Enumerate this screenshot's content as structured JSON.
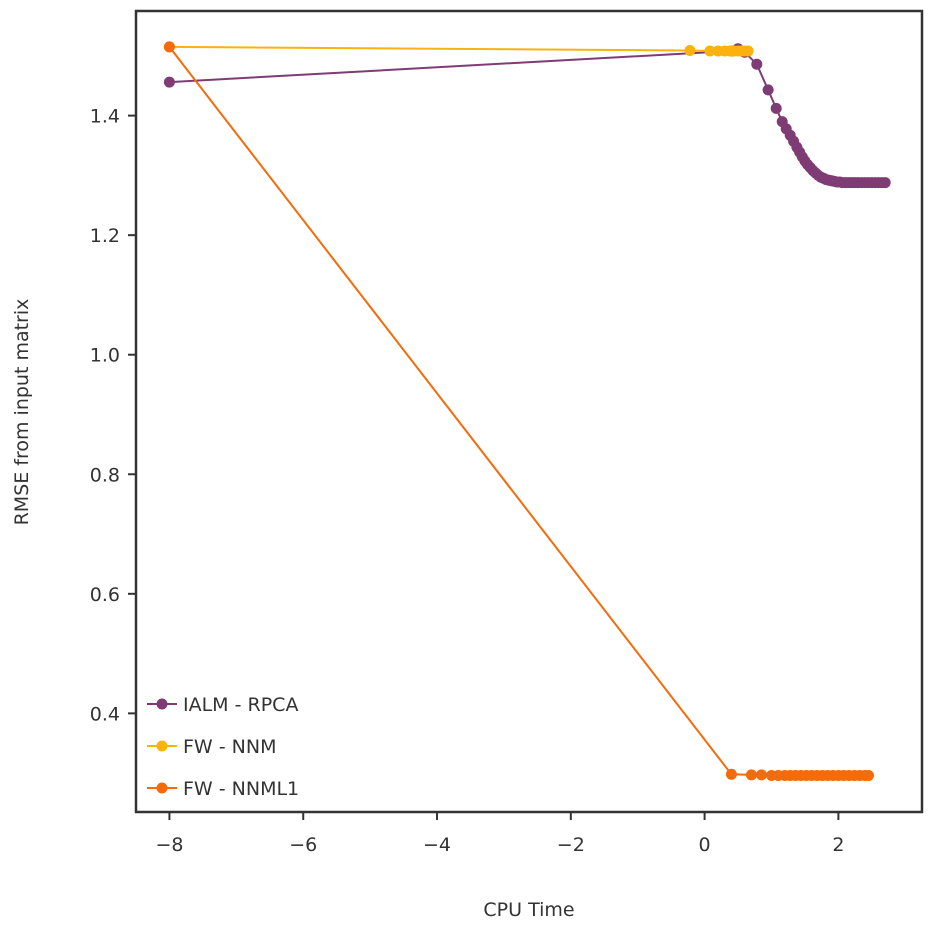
{
  "chart_data": {
    "type": "line",
    "xlabel": "CPU Time",
    "ylabel": "RMSE from input matrix",
    "xlim": [
      -8.5,
      3.25
    ],
    "ylim": [
      0.235,
      1.575
    ],
    "xticks": [
      -8,
      -6,
      -4,
      -2,
      0,
      2
    ],
    "xtick_labels": [
      "−8",
      "−6",
      "−4",
      "−2",
      "0",
      "2"
    ],
    "yticks": [
      0.4,
      0.6,
      0.8,
      1.0,
      1.2,
      1.4
    ],
    "ytick_labels": [
      "0.4",
      "0.6",
      "0.8",
      "1.0",
      "1.2",
      "1.4"
    ],
    "grid": false,
    "legend_position": "bottom-left",
    "series": [
      {
        "name": "IALM - RPCA",
        "color": "#7f3b74",
        "x": [
          -8.0,
          0.4,
          0.5,
          0.6,
          0.78,
          0.95,
          1.07,
          1.16,
          1.22,
          1.28,
          1.33,
          1.38,
          1.42,
          1.46,
          1.5,
          1.54,
          1.58,
          1.62,
          1.66,
          1.7,
          1.74,
          1.78,
          1.82,
          1.86,
          1.9,
          1.94,
          1.98,
          2.02,
          2.06,
          2.1,
          2.14,
          2.18,
          2.22,
          2.26,
          2.3,
          2.35,
          2.4,
          2.45,
          2.5,
          2.55,
          2.6,
          2.65,
          2.7
        ],
        "y": [
          1.456,
          1.508,
          1.512,
          1.506,
          1.486,
          1.443,
          1.412,
          1.39,
          1.378,
          1.367,
          1.357,
          1.347,
          1.339,
          1.331,
          1.324,
          1.318,
          1.313,
          1.308,
          1.304,
          1.3,
          1.297,
          1.295,
          1.293,
          1.292,
          1.291,
          1.29,
          1.289,
          1.289,
          1.288,
          1.288,
          1.288,
          1.288,
          1.288,
          1.288,
          1.288,
          1.288,
          1.288,
          1.288,
          1.288,
          1.288,
          1.288,
          1.288,
          1.288
        ]
      },
      {
        "name": "FW - NNM",
        "color": "#fbb10f",
        "x": [
          -8.0,
          -0.22,
          0.08,
          0.2,
          0.3,
          0.38,
          0.44,
          0.5,
          0.55,
          0.6,
          0.65
        ],
        "y": [
          1.515,
          1.509,
          1.508,
          1.508,
          1.508,
          1.508,
          1.508,
          1.508,
          1.508,
          1.508,
          1.508
        ]
      },
      {
        "name": "FW - NNML1",
        "color": "#f46b0c",
        "x": [
          -8.0,
          0.4,
          0.7,
          0.85,
          1.0,
          1.1,
          1.2,
          1.28,
          1.36,
          1.44,
          1.52,
          1.6,
          1.68,
          1.76,
          1.84,
          1.92,
          2.0,
          2.08,
          2.16,
          2.24,
          2.32,
          2.4,
          2.45
        ],
        "y": [
          1.515,
          0.298,
          0.297,
          0.297,
          0.296,
          0.296,
          0.296,
          0.296,
          0.296,
          0.296,
          0.296,
          0.296,
          0.296,
          0.296,
          0.296,
          0.296,
          0.296,
          0.296,
          0.296,
          0.296,
          0.296,
          0.296,
          0.296
        ]
      }
    ]
  }
}
